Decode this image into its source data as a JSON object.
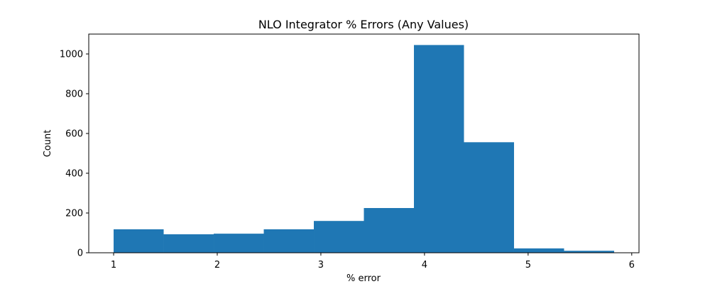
{
  "chart_data": {
    "type": "bar",
    "title": "NLO Integrator % Errors (Any Values)",
    "xlabel": "% error",
    "ylabel": "Count",
    "bin_edges": [
      1.0,
      1.483,
      1.966,
      2.449,
      2.932,
      3.415,
      3.898,
      4.381,
      4.864,
      5.347,
      5.83
    ],
    "values": [
      118,
      93,
      96,
      118,
      160,
      225,
      1045,
      556,
      22,
      10
    ],
    "xlim": [
      0.76,
      6.07
    ],
    "ylim": [
      0,
      1100
    ],
    "xticks": [
      1,
      2,
      3,
      4,
      5,
      6
    ],
    "yticks": [
      0,
      200,
      400,
      600,
      800,
      1000
    ],
    "bar_color": "#1f77b4",
    "grid": false,
    "legend": "none"
  }
}
